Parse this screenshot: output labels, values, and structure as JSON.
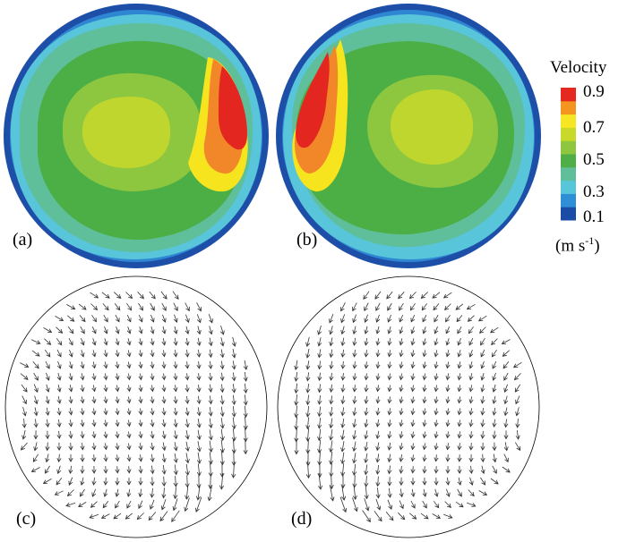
{
  "panels": {
    "a": "(a)",
    "b": "(b)",
    "c": "(c)",
    "d": "(d)"
  },
  "legend": {
    "title": "Velocity",
    "ticks": [
      "0.9",
      "0.7",
      "0.5",
      "0.3",
      "0.1"
    ],
    "unit_base": "(m s",
    "unit_exp": "-1",
    "unit_close": ")",
    "colors": [
      "#1a4ba6",
      "#2e8fd6",
      "#56c6d8",
      "#5fbf9a",
      "#4fae48",
      "#8ec63f",
      "#c8d92a",
      "#f7e623",
      "#f3951e",
      "#e5291f"
    ]
  },
  "contour_colors": {
    "rim_dark": "#1d4fa8",
    "rim_mid": "#2f86d2",
    "cyan": "#58c5da",
    "teal": "#5fbf9a",
    "green": "#4caf45",
    "light_green": "#8dc63f",
    "yellow_green": "#bfd62e",
    "yellow": "#f6e41e",
    "orange": "#f2872a",
    "red": "#e3261f"
  }
}
